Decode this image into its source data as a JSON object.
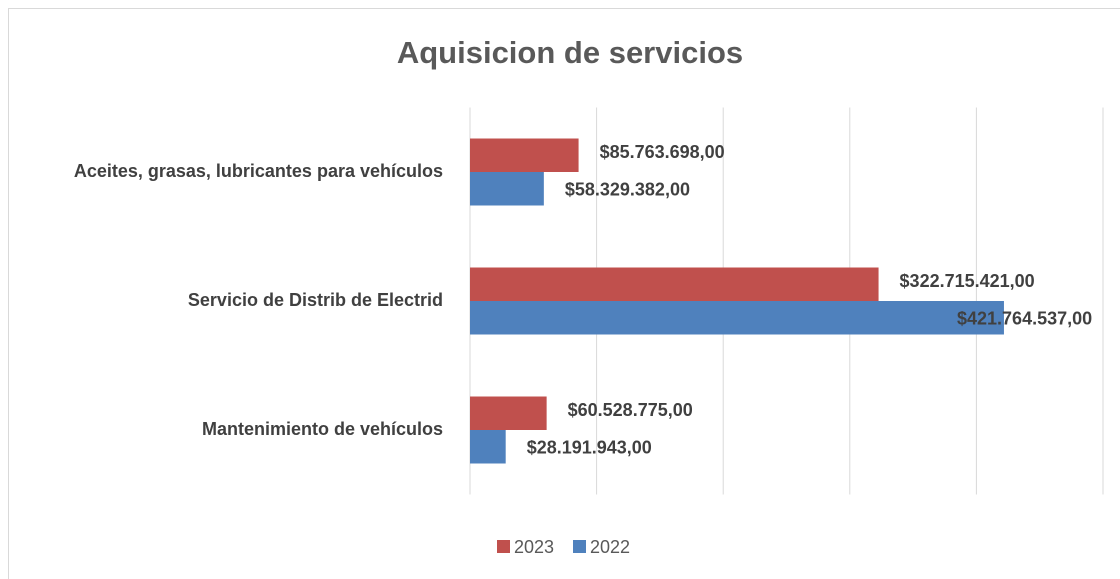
{
  "chart_data": {
    "type": "bar",
    "orientation": "horizontal",
    "title": "Aquisicion de servicios",
    "categories": [
      "Aceites, grasas, lubricantes para vehículos",
      "Servicio de Distrib de Electrid",
      "Mantenimiento de vehículos"
    ],
    "series": [
      {
        "name": "2023",
        "color": "#c0504d",
        "values": [
          85763698,
          322715421,
          60528775
        ],
        "value_labels": [
          "$85.763.698,00",
          "$322.715.421,00",
          "$60.528.775,00"
        ]
      },
      {
        "name": "2022",
        "color": "#4f81bd",
        "values": [
          58329382,
          421764537,
          28191943
        ],
        "value_labels": [
          "$58.329.382,00",
          "$421.764.537,00",
          "$28.191.943,00"
        ]
      }
    ],
    "xlim": [
      0,
      500000000
    ],
    "xticks": [
      0,
      100000000,
      200000000,
      300000000,
      400000000,
      500000000
    ],
    "grid": true,
    "legend": "bottom"
  }
}
